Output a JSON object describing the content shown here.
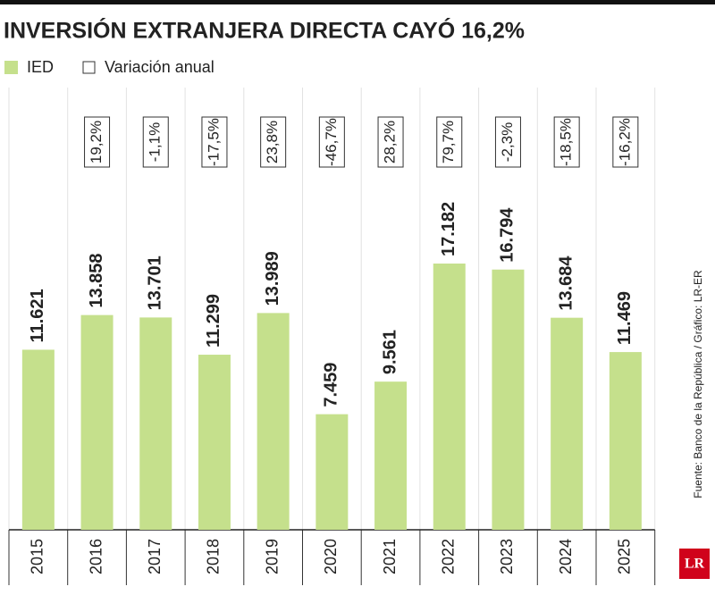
{
  "chart_data": {
    "type": "bar",
    "title": "INVERSIÓN EXTRANJERA DIRECTA CAYÓ 16,2%",
    "source": "Fuente: Banco de la República / Gráfico: LR-ER",
    "logo": "LR",
    "categories": [
      "2015",
      "2016",
      "2017",
      "2018",
      "2019",
      "2020",
      "2021",
      "2022",
      "2023",
      "2024",
      "2025"
    ],
    "series": [
      {
        "name": "IED",
        "color": "#c5e08c",
        "values": [
          11621,
          13858,
          13701,
          11299,
          13989,
          7459,
          9561,
          17182,
          16794,
          13684,
          11469
        ],
        "value_labels": [
          "11.621",
          "13.858",
          "13.701",
          "11.299",
          "13.989",
          "7.459",
          "9.561",
          "17.182",
          "16.794",
          "13.684",
          "11.469"
        ]
      },
      {
        "name": "Variación anual",
        "color": "#333333",
        "values": [
          null,
          19.2,
          -1.1,
          -17.5,
          23.8,
          -46.7,
          28.2,
          79.7,
          -2.3,
          -18.5,
          -16.2
        ],
        "value_labels": [
          null,
          "19,2%",
          "-1,1%",
          "-17,5%",
          "23,8%",
          "-46,7%",
          "28,2%",
          "79,7%",
          "-2,3%",
          "-18,5%",
          "-16,2%"
        ]
      }
    ]
  }
}
